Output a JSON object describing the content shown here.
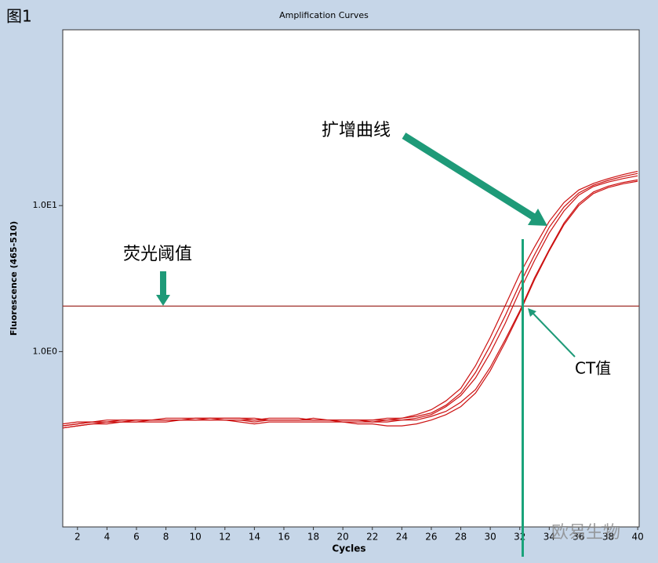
{
  "chart_data": {
    "type": "line",
    "title": "Amplification Curves",
    "figure_label": "图1",
    "xlabel": "Cycles",
    "ylabel": "Fluorescence (465-510)",
    "yscale": "log",
    "x": [
      1,
      2,
      3,
      4,
      5,
      6,
      7,
      8,
      9,
      10,
      11,
      12,
      13,
      14,
      15,
      16,
      17,
      18,
      19,
      20,
      21,
      22,
      23,
      24,
      25,
      26,
      27,
      28,
      29,
      30,
      31,
      32,
      33,
      34,
      35,
      36,
      37,
      38,
      39,
      40
    ],
    "xlim": [
      1,
      40.1
    ],
    "xticks": [
      2,
      4,
      6,
      8,
      10,
      12,
      14,
      16,
      18,
      20,
      22,
      24,
      26,
      28,
      30,
      32,
      34,
      36,
      38,
      40
    ],
    "ylim": [
      0.063,
      160
    ],
    "yticks": [
      {
        "value": 1,
        "label": "1.0E0"
      },
      {
        "value": 10,
        "label": "1.0E1"
      }
    ],
    "series": [
      {
        "color": "#cc1111",
        "values": [
          0.31,
          0.32,
          0.33,
          0.33,
          0.33,
          0.34,
          0.34,
          0.34,
          0.34,
          0.34,
          0.35,
          0.35,
          0.35,
          0.34,
          0.34,
          0.34,
          0.34,
          0.34,
          0.34,
          0.34,
          0.34,
          0.34,
          0.35,
          0.35,
          0.37,
          0.4,
          0.46,
          0.56,
          0.8,
          1.25,
          2.05,
          3.4,
          5.2,
          7.8,
          10.5,
          12.8,
          14.2,
          15.3,
          16.3,
          17.2
        ]
      },
      {
        "color": "#cc1111",
        "values": [
          0.32,
          0.33,
          0.33,
          0.34,
          0.34,
          0.34,
          0.34,
          0.35,
          0.35,
          0.35,
          0.35,
          0.34,
          0.34,
          0.34,
          0.35,
          0.35,
          0.35,
          0.34,
          0.34,
          0.34,
          0.34,
          0.34,
          0.34,
          0.35,
          0.36,
          0.38,
          0.43,
          0.52,
          0.72,
          1.1,
          1.75,
          2.9,
          4.6,
          7.1,
          9.8,
          12.2,
          13.8,
          14.9,
          15.8,
          16.6
        ]
      },
      {
        "color": "#cc1111",
        "values": [
          0.3,
          0.31,
          0.32,
          0.33,
          0.33,
          0.33,
          0.34,
          0.34,
          0.34,
          0.34,
          0.34,
          0.34,
          0.34,
          0.33,
          0.34,
          0.34,
          0.34,
          0.34,
          0.34,
          0.33,
          0.33,
          0.33,
          0.34,
          0.34,
          0.35,
          0.37,
          0.42,
          0.5,
          0.66,
          0.98,
          1.55,
          2.6,
          4.2,
          6.5,
          9.2,
          11.8,
          13.5,
          14.5,
          15.3,
          16.0
        ]
      },
      {
        "color": "#cc1111",
        "values": [
          0.31,
          0.32,
          0.33,
          0.33,
          0.34,
          0.34,
          0.34,
          0.34,
          0.34,
          0.35,
          0.35,
          0.35,
          0.35,
          0.35,
          0.34,
          0.34,
          0.34,
          0.35,
          0.34,
          0.34,
          0.34,
          0.33,
          0.33,
          0.34,
          0.34,
          0.36,
          0.39,
          0.45,
          0.55,
          0.78,
          1.2,
          1.9,
          3.2,
          5.0,
          7.6,
          10.3,
          12.4,
          13.6,
          14.4,
          15.0
        ]
      },
      {
        "color": "#cc1111",
        "values": [
          0.3,
          0.31,
          0.32,
          0.32,
          0.33,
          0.33,
          0.33,
          0.33,
          0.34,
          0.34,
          0.34,
          0.34,
          0.33,
          0.32,
          0.33,
          0.33,
          0.33,
          0.33,
          0.33,
          0.33,
          0.32,
          0.32,
          0.31,
          0.31,
          0.32,
          0.34,
          0.37,
          0.42,
          0.52,
          0.74,
          1.15,
          1.85,
          3.1,
          4.9,
          7.4,
          10.0,
          12.1,
          13.3,
          14.1,
          14.7
        ]
      }
    ],
    "threshold": 2.05,
    "threshold_color": "#a0302a",
    "threshold_label": "荧光阈值",
    "ct_value": 32.2,
    "ct_color": "#1aa37a",
    "ct_label": "CT值",
    "curve_label": "扩增曲线",
    "watermark": "欧易生物"
  }
}
